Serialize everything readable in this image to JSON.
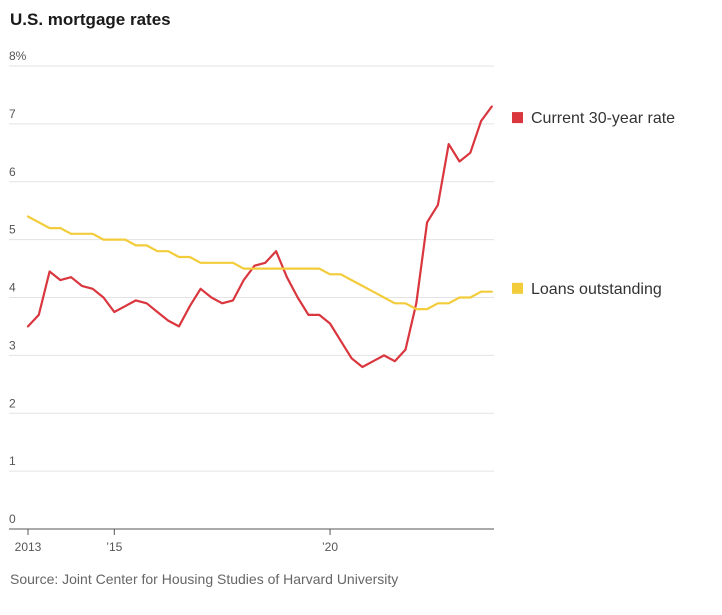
{
  "title": "U.S. mortgage rates",
  "source": "Source: Joint Center for Housing Studies of Harvard University",
  "chart_data": {
    "type": "line",
    "ylim": [
      0,
      8
    ],
    "xlim": [
      2013.0,
      2023.8
    ],
    "grid": true,
    "legend_placement": "right",
    "y_ticks": [
      {
        "value": 0,
        "label": "0"
      },
      {
        "value": 1,
        "label": "1"
      },
      {
        "value": 2,
        "label": "2"
      },
      {
        "value": 3,
        "label": "3"
      },
      {
        "value": 4,
        "label": "4"
      },
      {
        "value": 5,
        "label": "5"
      },
      {
        "value": 6,
        "label": "6"
      },
      {
        "value": 7,
        "label": "7"
      },
      {
        "value": 8,
        "label": "8%"
      }
    ],
    "x_ticks": [
      {
        "value": 2013,
        "label": "2013"
      },
      {
        "value": 2015,
        "label": "’15"
      },
      {
        "value": 2020,
        "label": "’20"
      }
    ],
    "series": [
      {
        "name": "Current 30-year rate",
        "color": "#d9363e",
        "points": [
          [
            2013.0,
            3.5
          ],
          [
            2013.25,
            3.7
          ],
          [
            2013.5,
            4.45
          ],
          [
            2013.75,
            4.3
          ],
          [
            2014.0,
            4.35
          ],
          [
            2014.25,
            4.2
          ],
          [
            2014.5,
            4.15
          ],
          [
            2014.75,
            4.0
          ],
          [
            2015.0,
            3.75
          ],
          [
            2015.25,
            3.85
          ],
          [
            2015.5,
            3.95
          ],
          [
            2015.75,
            3.9
          ],
          [
            2016.0,
            3.75
          ],
          [
            2016.25,
            3.6
          ],
          [
            2016.5,
            3.5
          ],
          [
            2016.75,
            3.85
          ],
          [
            2017.0,
            4.15
          ],
          [
            2017.25,
            4.0
          ],
          [
            2017.5,
            3.9
          ],
          [
            2017.75,
            3.95
          ],
          [
            2018.0,
            4.3
          ],
          [
            2018.25,
            4.55
          ],
          [
            2018.5,
            4.6
          ],
          [
            2018.75,
            4.8
          ],
          [
            2019.0,
            4.35
          ],
          [
            2019.25,
            4.0
          ],
          [
            2019.5,
            3.7
          ],
          [
            2019.75,
            3.7
          ],
          [
            2020.0,
            3.55
          ],
          [
            2020.25,
            3.25
          ],
          [
            2020.5,
            2.95
          ],
          [
            2020.75,
            2.8
          ],
          [
            2021.0,
            2.9
          ],
          [
            2021.25,
            3.0
          ],
          [
            2021.5,
            2.9
          ],
          [
            2021.75,
            3.1
          ],
          [
            2022.0,
            3.9
          ],
          [
            2022.25,
            5.3
          ],
          [
            2022.5,
            5.6
          ],
          [
            2022.75,
            6.65
          ],
          [
            2023.0,
            6.35
          ],
          [
            2023.25,
            6.5
          ],
          [
            2023.5,
            7.05
          ],
          [
            2023.75,
            7.3
          ]
        ]
      },
      {
        "name": "Loans outstanding",
        "color": "#f2cc3a",
        "points": [
          [
            2013.0,
            5.4
          ],
          [
            2013.25,
            5.3
          ],
          [
            2013.5,
            5.2
          ],
          [
            2013.75,
            5.2
          ],
          [
            2014.0,
            5.1
          ],
          [
            2014.5,
            5.1
          ],
          [
            2014.75,
            5.0
          ],
          [
            2015.25,
            5.0
          ],
          [
            2015.5,
            4.9
          ],
          [
            2015.75,
            4.9
          ],
          [
            2016.0,
            4.8
          ],
          [
            2016.25,
            4.8
          ],
          [
            2016.5,
            4.7
          ],
          [
            2016.75,
            4.7
          ],
          [
            2017.0,
            4.6
          ],
          [
            2017.75,
            4.6
          ],
          [
            2018.0,
            4.5
          ],
          [
            2019.75,
            4.5
          ],
          [
            2020.0,
            4.4
          ],
          [
            2020.25,
            4.4
          ],
          [
            2020.5,
            4.3
          ],
          [
            2020.75,
            4.2
          ],
          [
            2021.0,
            4.1
          ],
          [
            2021.25,
            4.0
          ],
          [
            2021.5,
            3.9
          ],
          [
            2021.75,
            3.9
          ],
          [
            2022.0,
            3.8
          ],
          [
            2022.25,
            3.8
          ],
          [
            2022.5,
            3.9
          ],
          [
            2022.75,
            3.9
          ],
          [
            2023.0,
            4.0
          ],
          [
            2023.25,
            4.0
          ],
          [
            2023.5,
            4.1
          ],
          [
            2023.75,
            4.1
          ]
        ]
      }
    ]
  }
}
